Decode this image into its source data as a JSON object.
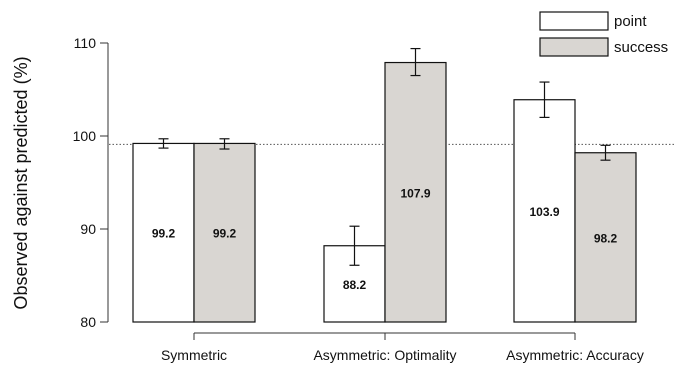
{
  "chart_data": {
    "type": "bar",
    "title": "",
    "xlabel": "",
    "ylabel": "Observed against predicted (%)",
    "ylim": [
      80,
      110
    ],
    "yticks": [
      80,
      90,
      100,
      110
    ],
    "categories": [
      "Symmetric",
      "Asymmetric: Optimality",
      "Asymmetric: Accuracy"
    ],
    "series": [
      {
        "name": "point",
        "color": "#ffffff",
        "values": [
          99.2,
          88.2,
          103.9
        ],
        "value_labels": [
          "99.2",
          "88.2",
          "103.9"
        ],
        "error_low": [
          98.7,
          86.1,
          102.0
        ],
        "error_high": [
          99.7,
          90.3,
          105.8
        ]
      },
      {
        "name": "success",
        "color": "#d9d6d2",
        "values": [
          99.2,
          107.9,
          98.2
        ],
        "value_labels": [
          "99.2",
          "107.9",
          "98.2"
        ],
        "error_low": [
          98.6,
          106.5,
          97.4
        ],
        "error_high": [
          99.7,
          109.4,
          99.0
        ]
      }
    ],
    "reference_line": {
      "y": 99.1,
      "style": "dotted"
    },
    "legend": {
      "placement": "top-right"
    },
    "grid": false
  }
}
